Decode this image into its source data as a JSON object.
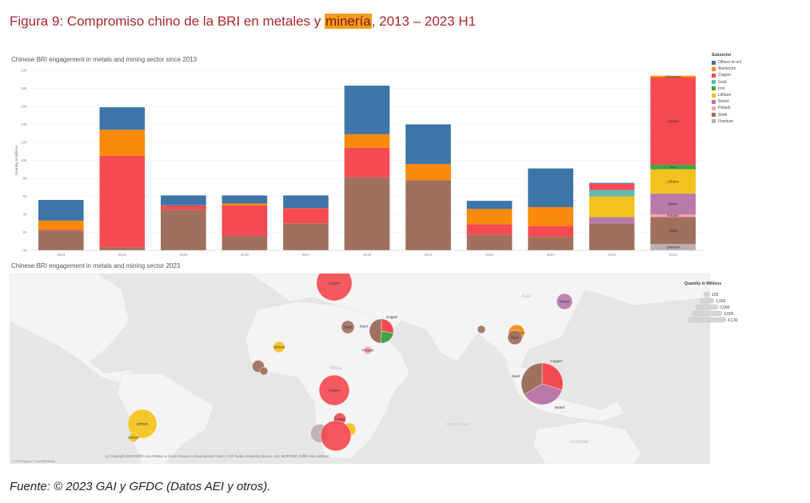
{
  "figure": {
    "title_pre": "Figura 9: Compromiso chino de la BRI en metales y ",
    "title_hl": "minería",
    "title_post": ", 2013 – 2023 H1",
    "source": "Fuente: © 2023 GAI y GFDC (Datos AEI y otros)."
  },
  "colors": {
    "Others or unl": "#3e75a8",
    "Aluminum": "#f98a0a",
    "Copper": "#f44b52",
    "Gold": "#5bbcb2",
    "Iron": "#3ba643",
    "Lithium": "#f3c21c",
    "Nickel": "#b97aaa",
    "Potash": "#f7a1ab",
    "Steel": "#9f705e",
    "Uranium": "#bab0ac"
  },
  "chart_data": [
    {
      "type": "bar",
      "stacked": true,
      "title": "Chinese BRI engagement in metals and mining sector since 2013",
      "ylabel": "Quantity in Millions",
      "ylim": [
        0,
        20000
      ],
      "y_ticks": [
        "0K",
        "2K",
        "4K",
        "6K",
        "8K",
        "10K",
        "12K",
        "14K",
        "16K",
        "18K",
        "20K"
      ],
      "y_tick_values": [
        0,
        2000,
        4000,
        6000,
        8000,
        10000,
        12000,
        14000,
        16000,
        18000,
        20000
      ],
      "categories": [
        "2013",
        "2014",
        "2015",
        "2016",
        "2017",
        "2018",
        "2019",
        "2020",
        "2021",
        "2022",
        "2023"
      ],
      "legend_title": "Subsector",
      "legend_position": "right",
      "series": [
        {
          "name": "Uranium",
          "values": [
            0,
            0,
            0,
            0,
            0,
            0,
            0,
            0,
            0,
            0,
            700
          ]
        },
        {
          "name": "Steel",
          "values": [
            2200,
            300,
            4500,
            1600,
            3000,
            8100,
            7800,
            1700,
            1500,
            3000,
            3000
          ]
        },
        {
          "name": "Potash",
          "values": [
            0,
            0,
            0,
            0,
            0,
            0,
            0,
            0,
            0,
            0,
            300
          ]
        },
        {
          "name": "Nickel",
          "values": [
            0,
            0,
            0,
            0,
            0,
            0,
            0,
            0,
            0,
            700,
            2300
          ]
        },
        {
          "name": "Lithium",
          "values": [
            0,
            0,
            0,
            0,
            0,
            0,
            0,
            0,
            0,
            2300,
            2700
          ]
        },
        {
          "name": "Iron",
          "values": [
            0,
            0,
            0,
            0,
            0,
            0,
            0,
            0,
            0,
            0,
            500
          ]
        },
        {
          "name": "Gold",
          "values": [
            0,
            0,
            0,
            0,
            0,
            0,
            0,
            0,
            0,
            700,
            0
          ]
        },
        {
          "name": "Copper",
          "values": [
            100,
            10200,
            500,
            3400,
            1700,
            3300,
            0,
            1200,
            1200,
            700,
            9700
          ]
        },
        {
          "name": "Aluminum",
          "values": [
            1000,
            2900,
            0,
            200,
            0,
            1500,
            1800,
            1700,
            2100,
            0,
            200
          ]
        },
        {
          "name": "Others or unl",
          "values": [
            2300,
            2500,
            1100,
            900,
            1400,
            5400,
            4400,
            900,
            4300,
            100,
            0
          ]
        }
      ],
      "segment_labels_2023": [
        {
          "series": "Uranium",
          "label": "Uranium"
        },
        {
          "series": "Steel",
          "label": "Steel"
        },
        {
          "series": "Potash",
          "label": "Potash"
        },
        {
          "series": "Nickel",
          "label": "Nickel"
        },
        {
          "series": "Lithium",
          "label": "Lithium"
        },
        {
          "series": "Iron",
          "label": "Iron"
        },
        {
          "series": "Copper",
          "label": "Copper"
        },
        {
          "series": "Aluminum",
          "label": "Aluminum"
        }
      ]
    },
    {
      "type": "scatter",
      "subtype": "bubble-map",
      "title": "Chinese BRI engagement in metals and mining sector 2023",
      "size_legend_title": "Quantity in Millions",
      "size_legend_values": [
        "100",
        "1,000",
        "2,000",
        "3,000",
        "4,130"
      ],
      "attribution": "(c) Copyright 2023 Griffith Asia Institute & Green Finance & Development Center, FISF Fudan University (Source: AEI, MOFCOM, Griffith Asia Institute)",
      "map_credit": "© 2023 Mapbox © OpenStreetMap",
      "region_labels": [
        "Asia",
        "Africa",
        "Australia",
        "Indian Ocean"
      ],
      "points": [
        {
          "name": "Copper",
          "label": "Copper",
          "value": 3000,
          "region": "Europe (Serbia)"
        },
        {
          "name": "Steel",
          "label": "Steel",
          "value": 400,
          "region": "Egypt"
        },
        {
          "name": "Steel/Copper/Iron",
          "label": "Steel",
          "label2": "Copper",
          "value": 1400,
          "region": "Saudi Arabia"
        },
        {
          "name": "Potash",
          "label": "Potash",
          "value": 150,
          "region": "Eritrea"
        },
        {
          "name": "Lithium",
          "label": "Lithium",
          "value": 300,
          "region": "Mali"
        },
        {
          "name": "Steel",
          "label": "",
          "value": 350,
          "region": "Guinea"
        },
        {
          "name": "Steel",
          "label": "",
          "value": 150,
          "region": "Sierra Leone"
        },
        {
          "name": "Copper",
          "label": "Copper",
          "value": 2200,
          "region": "DR Congo"
        },
        {
          "name": "Copper",
          "label": "Copper",
          "value": 350,
          "region": "Zambia"
        },
        {
          "name": "Lithium",
          "label": "",
          "value": 400,
          "region": "Zimbabwe"
        },
        {
          "name": "Uranium",
          "label": "",
          "value": 800,
          "region": "Namibia"
        },
        {
          "name": "Copper",
          "label": "",
          "value": 2200,
          "region": "Botswana"
        },
        {
          "name": "Lithium",
          "label": "Lithium",
          "value": 2000,
          "region": "Argentina"
        },
        {
          "name": "Lithium",
          "label": "Lithium",
          "value": 200,
          "region": "Chile"
        },
        {
          "name": "Steel",
          "label": "",
          "value": 150,
          "region": "Bangladesh"
        },
        {
          "name": "Aluminum",
          "label": "Aluminum",
          "value": 600,
          "region": "Vietnam"
        },
        {
          "name": "Steel",
          "label": "Steel",
          "value": 500,
          "region": "Laos"
        },
        {
          "name": "Nickel",
          "label": "Nickel",
          "value": 600,
          "region": "Korea"
        },
        {
          "name": "Steel/Copper/Nickel",
          "label": "Steel",
          "label2": "Copper",
          "label3": "Nickel",
          "value": 4130,
          "region": "Indonesia"
        }
      ]
    }
  ]
}
